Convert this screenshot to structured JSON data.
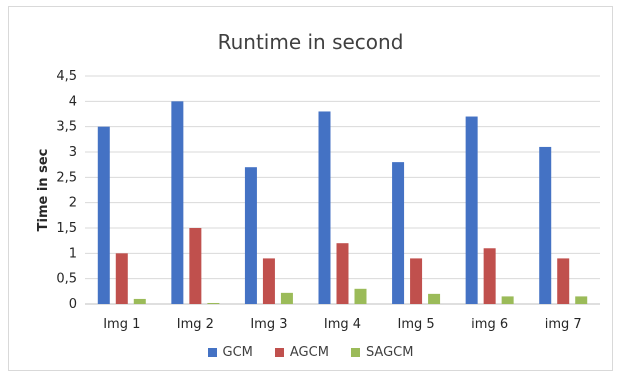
{
  "chart_data": {
    "type": "bar",
    "title": "Runtime in second",
    "xlabel": "",
    "ylabel": "Time in sec",
    "categories": [
      "Img 1",
      "Img 2",
      "Img 3",
      "Img 4",
      "Img 5",
      "img 6",
      "img 7"
    ],
    "series": [
      {
        "name": "GCM",
        "color": "#4472C4",
        "values": [
          3.5,
          4.0,
          2.7,
          3.8,
          2.8,
          3.7,
          3.1
        ]
      },
      {
        "name": "AGCM",
        "color": "#C0504D",
        "values": [
          1.0,
          1.5,
          0.9,
          1.2,
          0.9,
          1.1,
          0.9
        ]
      },
      {
        "name": "SAGCM",
        "color": "#9BBB59",
        "values": [
          0.1,
          0.02,
          0.22,
          0.3,
          0.2,
          0.15,
          0.15
        ]
      }
    ],
    "ylim": [
      0,
      4.5
    ],
    "yticks": [
      "0",
      "0,5",
      "1",
      "1,5",
      "2",
      "2,5",
      "3",
      "3,5",
      "4",
      "4,5"
    ],
    "grid": true,
    "legend_position": "bottom"
  }
}
